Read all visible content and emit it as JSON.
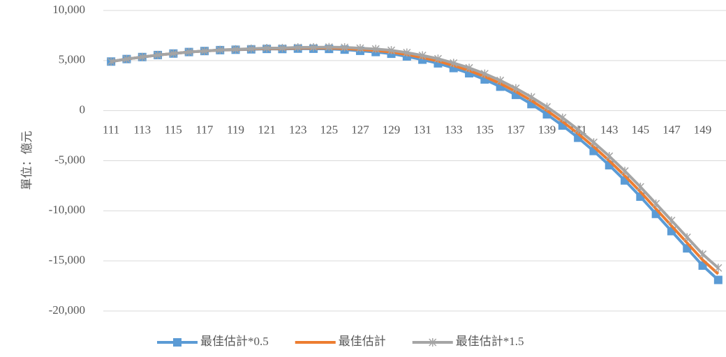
{
  "chart_data": {
    "type": "line",
    "y_label": "單位：億元",
    "categories": [
      "111",
      null,
      "113",
      null,
      "115",
      null,
      "117",
      null,
      "119",
      null,
      "121",
      null,
      "123",
      null,
      "125",
      null,
      "127",
      null,
      "129",
      null,
      "131",
      null,
      "133",
      null,
      "135",
      null,
      "137",
      null,
      "139",
      null,
      "141",
      null,
      "143",
      null,
      "145",
      null,
      "147",
      null,
      "149",
      null
    ],
    "series": [
      {
        "name": "最佳估計*0.5",
        "color": "#5b9bd5",
        "marker": "square",
        "values": [
          4900,
          5150,
          5350,
          5550,
          5700,
          5850,
          5950,
          6040,
          6080,
          6120,
          6160,
          6150,
          6190,
          6180,
          6160,
          6090,
          5970,
          5850,
          5680,
          5410,
          5090,
          4720,
          4250,
          3730,
          3110,
          2390,
          1570,
          650,
          -370,
          -1490,
          -2710,
          -4030,
          -5450,
          -6970,
          -8590,
          -10310,
          -12030,
          -13750,
          -15470,
          -16900
        ]
      },
      {
        "name": "最佳估計",
        "color": "#ed7d31",
        "marker": "none",
        "values": [
          4900,
          5150,
          5350,
          5550,
          5700,
          5850,
          5950,
          6050,
          6100,
          6150,
          6200,
          6200,
          6250,
          6250,
          6250,
          6200,
          6100,
          6000,
          5850,
          5600,
          5300,
          4950,
          4500,
          4000,
          3400,
          2700,
          1900,
          1000,
          0,
          -1100,
          -2300,
          -3600,
          -5000,
          -6500,
          -8100,
          -9800,
          -11500,
          -13200,
          -14900,
          -16300
        ]
      },
      {
        "name": "最佳估計*1.5",
        "color": "#a5a5a5",
        "marker": "star",
        "values": [
          4900,
          5150,
          5350,
          5550,
          5700,
          5850,
          5950,
          6060,
          6120,
          6180,
          6240,
          6250,
          6310,
          6320,
          6340,
          6310,
          6230,
          6150,
          6020,
          5790,
          5510,
          5180,
          4750,
          4270,
          3690,
          3010,
          2230,
          1350,
          370,
          -710,
          -1890,
          -3170,
          -4550,
          -6030,
          -7610,
          -9290,
          -10970,
          -12650,
          -14330,
          -15700
        ]
      }
    ],
    "ylim": [
      -20000,
      10000
    ],
    "yticks": [
      {
        "value": -20000,
        "label": "-20,000"
      },
      {
        "value": -15000,
        "label": "-15,000"
      },
      {
        "value": -10000,
        "label": "-10,000"
      },
      {
        "value": -5000,
        "label": "-5,000"
      },
      0,
      {
        "value": 5000,
        "label": "5,000"
      },
      {
        "value": 10000,
        "label": "10,000"
      }
    ],
    "grid": true,
    "legend": "bottom"
  }
}
